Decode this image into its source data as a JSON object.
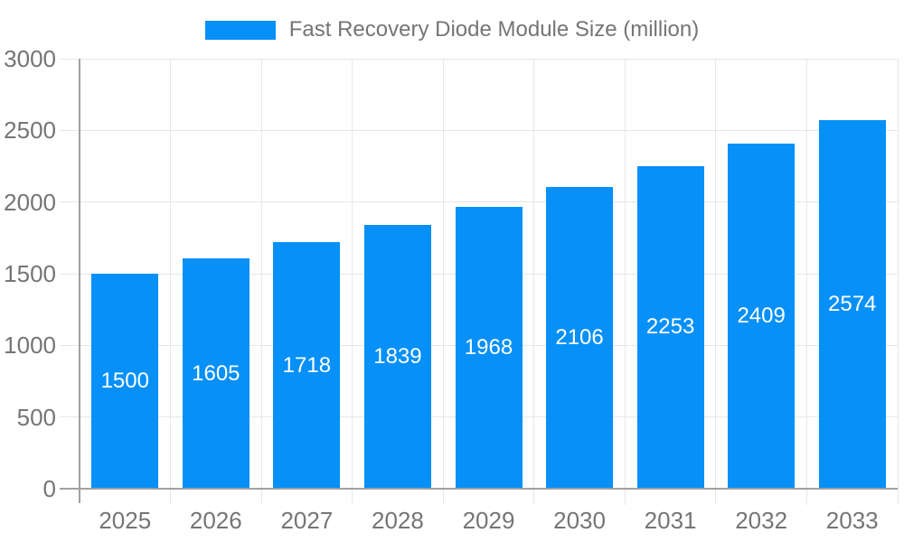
{
  "chart_data": {
    "type": "bar",
    "title": "Fast Recovery Diode Module Size (million)",
    "legend_label": "Fast Recovery Diode Module Size (million)",
    "legend_position": "top",
    "categories": [
      "2025",
      "2026",
      "2027",
      "2028",
      "2029",
      "2030",
      "2031",
      "2032",
      "2033"
    ],
    "values": [
      1500,
      1605,
      1718,
      1839,
      1968,
      2106,
      2253,
      2409,
      2574
    ],
    "xlabel": "",
    "ylabel": "",
    "ylim": [
      0,
      3000
    ],
    "ytick_step": 500,
    "ytick_labels": [
      "0",
      "500",
      "1000",
      "1500",
      "2000",
      "2500",
      "3000"
    ],
    "grid": true,
    "bar_value_labels_visible": true,
    "colors": {
      "bar": "#0690f8",
      "grid": "#e6e6e6",
      "axis": "#a0a0a0",
      "tick_text": "#757575",
      "bar_value_text": "#ffffff",
      "legend_text": "#757575",
      "background": "#ffffff"
    }
  }
}
